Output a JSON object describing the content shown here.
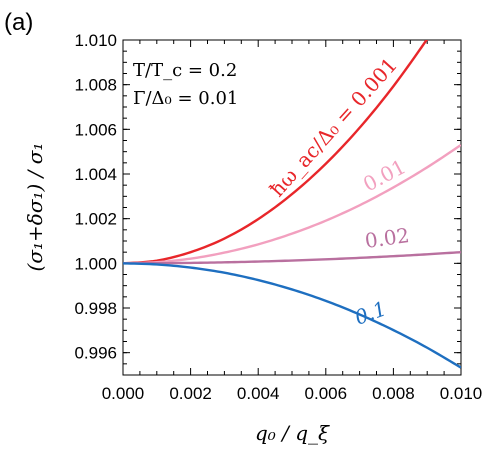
{
  "chart_data": {
    "type": "line",
    "panel_label": "(a)",
    "xlabel": "q₀ / q_ξ",
    "ylabel": "(σ₁+δσ₁) / σ₁",
    "xlim": [
      0.0,
      0.01
    ],
    "ylim": [
      0.995,
      1.01
    ],
    "x_ticks": [
      "0.000",
      "0.002",
      "0.004",
      "0.006",
      "0.008",
      "0.010"
    ],
    "y_ticks": [
      "0.996",
      "0.998",
      "1.000",
      "1.002",
      "1.004",
      "1.006",
      "1.008",
      "1.010"
    ],
    "annotations": [
      "T/T_c = 0.2",
      "Γ/Δ₀ = 0.01"
    ],
    "series": [
      {
        "name": "ħω_ac/Δ₀ = 0.001",
        "color": "#e8262a",
        "x": [
          0,
          0.001,
          0.002,
          0.003,
          0.004,
          0.005,
          0.006,
          0.007,
          0.008,
          0.009,
          0.0095
        ],
        "y": [
          1.0,
          1.00012,
          1.0005,
          1.00111,
          1.00198,
          1.0031,
          1.00446,
          1.00607,
          1.00793,
          1.01004,
          1.01119
        ]
      },
      {
        "name": "0.01",
        "color": "#f2a0bf",
        "x": [
          0,
          0.001,
          0.002,
          0.003,
          0.004,
          0.005,
          0.006,
          0.007,
          0.008,
          0.009,
          0.01
        ],
        "y": [
          1.0,
          1.00005,
          1.00021,
          1.00048,
          1.00085,
          1.00133,
          1.00191,
          1.0026,
          1.0034,
          1.0043,
          1.0053
        ]
      },
      {
        "name": "0.02",
        "color": "#b9709f",
        "x": [
          0,
          0.001,
          0.002,
          0.003,
          0.004,
          0.005,
          0.006,
          0.007,
          0.008,
          0.009,
          0.01
        ],
        "y": [
          1.0,
          1.000005,
          1.00002,
          1.000045,
          1.00008,
          1.000125,
          1.00018,
          1.000245,
          1.00032,
          1.000405,
          1.0005
        ]
      },
      {
        "name": "0.1",
        "color": "#1e6fc0",
        "x": [
          0,
          0.001,
          0.002,
          0.003,
          0.004,
          0.005,
          0.006,
          0.007,
          0.008,
          0.009,
          0.01
        ],
        "y": [
          1.0,
          0.99995,
          0.99981,
          0.99958,
          0.99925,
          0.99883,
          0.99832,
          0.99771,
          0.99701,
          0.99622,
          0.99533
        ]
      }
    ]
  }
}
